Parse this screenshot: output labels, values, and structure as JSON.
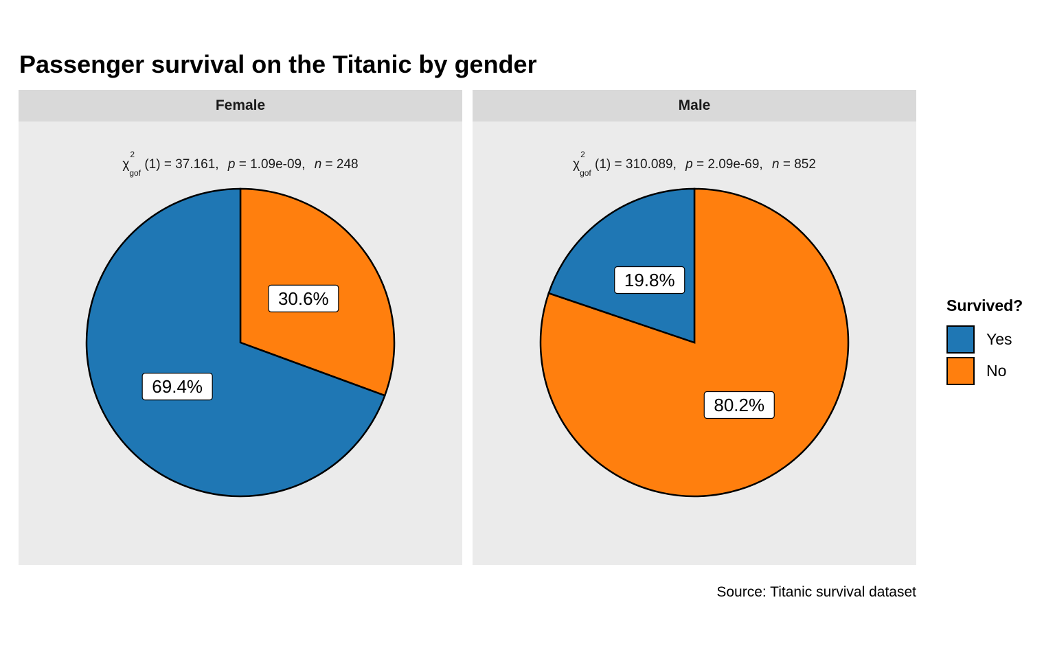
{
  "chart_data": {
    "type": "pie",
    "title": "Passenger survival on the Titanic by gender",
    "caption": "Source: Titanic survival dataset",
    "legend": {
      "title": "Survived?",
      "position": "right",
      "items": [
        {
          "label": "Yes",
          "color": "#1f77b4"
        },
        {
          "label": "No",
          "color": "#ff7f0e"
        }
      ]
    },
    "facets": [
      {
        "name": "Female",
        "stat": {
          "chi_df": "(1) = 37.161,",
          "p_text": "= 1.09e-09,",
          "n_text": "= 248"
        },
        "slices": [
          {
            "label": "No",
            "value": 30.6,
            "pct_label": "30.6%",
            "color": "#ff7f0e"
          },
          {
            "label": "Yes",
            "value": 69.4,
            "pct_label": "69.4%",
            "color": "#1f77b4"
          }
        ]
      },
      {
        "name": "Male",
        "stat": {
          "chi_df": "(1) = 310.089,",
          "p_text": "= 2.09e-69,",
          "n_text": "= 852"
        },
        "slices": [
          {
            "label": "No",
            "value": 80.2,
            "pct_label": "80.2%",
            "color": "#ff7f0e"
          },
          {
            "label": "Yes",
            "value": 19.8,
            "pct_label": "19.8%",
            "color": "#1f77b4"
          }
        ]
      }
    ]
  },
  "labels": {
    "chi": "χ",
    "chi_sup": "2",
    "chi_sub": "gof",
    "p": "p",
    "n": "n"
  }
}
